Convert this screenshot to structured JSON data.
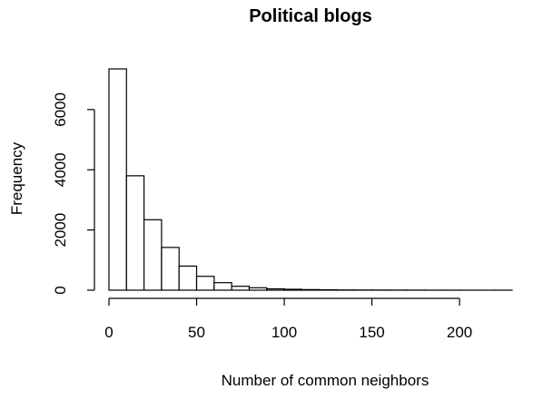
{
  "chart_data": {
    "type": "bar",
    "subtype": "histogram",
    "title": "Political blogs",
    "xlabel": "Number of common neighbors",
    "ylabel": "Frequency",
    "bin_width": 10,
    "bin_starts": [
      0,
      10,
      20,
      30,
      40,
      50,
      60,
      70,
      80,
      90,
      100,
      110,
      120,
      130,
      140,
      150,
      160,
      170,
      180,
      190,
      200,
      210,
      220
    ],
    "values": [
      7350,
      3800,
      2340,
      1420,
      800,
      460,
      250,
      130,
      80,
      45,
      30,
      20,
      12,
      8,
      6,
      5,
      4,
      3,
      2,
      2,
      1,
      1,
      1
    ],
    "xlim": [
      0,
      230
    ],
    "ylim": [
      0,
      7350
    ],
    "x_ticks": [
      0,
      50,
      100,
      150,
      200
    ],
    "y_ticks": [
      0,
      2000,
      4000,
      6000
    ],
    "grid": false,
    "legend": "none",
    "colors": {
      "bar_fill": "#ffffff",
      "bar_stroke": "#000000"
    }
  }
}
